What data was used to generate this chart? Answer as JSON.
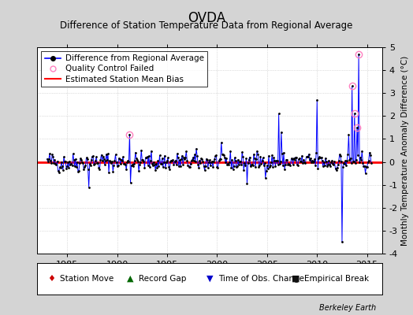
{
  "title": "OVDA",
  "subtitle": "Difference of Station Temperature Data from Regional Average",
  "ylabel": "Monthly Temperature Anomaly Difference (°C)",
  "xlim": [
    1982.0,
    2016.5
  ],
  "ylim": [
    -4,
    5
  ],
  "yticks": [
    -4,
    -3,
    -2,
    -1,
    0,
    1,
    2,
    3,
    4,
    5
  ],
  "xticks": [
    1985,
    1990,
    1995,
    2000,
    2005,
    2010,
    2015
  ],
  "bg_color": "#d4d4d4",
  "plot_bg_color": "#ffffff",
  "grid_color": "#c0c0c0",
  "line_color": "#0000ff",
  "bias_color": "#ff0000",
  "bias_value": 0.0,
  "title_fontsize": 12,
  "subtitle_fontsize": 8.5,
  "label_fontsize": 7.5,
  "tick_fontsize": 8,
  "watermark": "Berkeley Earth",
  "start_year": 1983,
  "num_months": 390,
  "seed": 42
}
